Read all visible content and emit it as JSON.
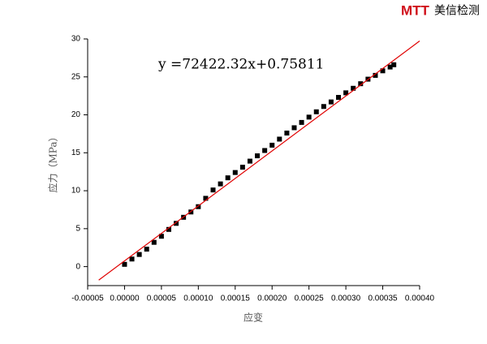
{
  "brand": {
    "mark": "MTT",
    "name": "美信检测"
  },
  "chart_data": {
    "type": "scatter",
    "annotation": "y =72422.32x+0.75811",
    "xlabel": "应变",
    "ylabel": "应力（MPa）",
    "xlim": [
      -5e-05,
      0.0004
    ],
    "ylim": [
      -2.5,
      30
    ],
    "xticks": [
      {
        "value": -5e-05,
        "label": "-0.00005"
      },
      {
        "value": 0,
        "label": "0.00000"
      },
      {
        "value": 5e-05,
        "label": "0.00005"
      },
      {
        "value": 0.0001,
        "label": "0.00010"
      },
      {
        "value": 0.00015,
        "label": "0.00015"
      },
      {
        "value": 0.0002,
        "label": "0.00020"
      },
      {
        "value": 0.00025,
        "label": "0.00025"
      },
      {
        "value": 0.0003,
        "label": "0.00030"
      },
      {
        "value": 0.00035,
        "label": "0.00035"
      },
      {
        "value": 0.0004,
        "label": "0.00040"
      }
    ],
    "yticks": [
      0,
      5,
      10,
      15,
      20,
      25,
      30
    ],
    "series": [
      {
        "mode": "markers",
        "color": "#000000",
        "x": [
          0,
          1e-05,
          2e-05,
          3e-05,
          4e-05,
          5e-05,
          6e-05,
          7e-05,
          8e-05,
          9e-05,
          0.0001,
          0.00011,
          0.00012,
          0.00013,
          0.00014,
          0.00015,
          0.00016,
          0.00017,
          0.00018,
          0.00019,
          0.0002,
          0.00021,
          0.00022,
          0.00023,
          0.00024,
          0.00025,
          0.00026,
          0.00027,
          0.00028,
          0.00029,
          0.0003,
          0.00031,
          0.00032,
          0.00033,
          0.00034,
          0.00035,
          0.00036,
          0.000365
        ],
        "values": [
          0.3,
          1.0,
          1.6,
          2.3,
          3.2,
          4.0,
          4.9,
          5.7,
          6.5,
          7.2,
          7.9,
          9.0,
          10.1,
          10.9,
          11.7,
          12.4,
          13.1,
          13.9,
          14.6,
          15.3,
          16.0,
          16.8,
          17.6,
          18.3,
          19.0,
          19.7,
          20.4,
          21.1,
          21.7,
          22.3,
          22.9,
          23.5,
          24.1,
          24.7,
          25.2,
          25.8,
          26.3,
          26.6
        ]
      },
      {
        "mode": "line",
        "color": "#e00000",
        "x": [
          -3.5e-05,
          0.0004
        ],
        "values": [
          -1.78,
          29.73
        ]
      }
    ]
  }
}
